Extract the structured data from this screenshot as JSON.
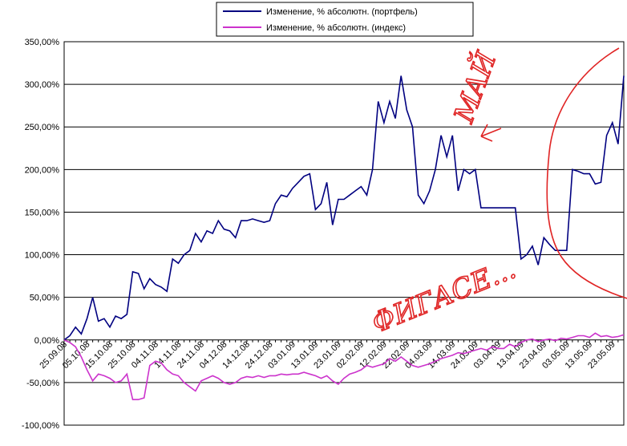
{
  "chart_data": {
    "type": "line",
    "categories": [
      "25.09.08",
      null,
      null,
      null,
      "05.10.08",
      null,
      null,
      null,
      "15.10.08",
      null,
      null,
      null,
      "25.10.08",
      null,
      null,
      null,
      "04.11.08",
      null,
      null,
      null,
      "14.11.08",
      null,
      null,
      null,
      "24.11.08",
      null,
      null,
      null,
      "04.12.08",
      null,
      null,
      null,
      "14.12.08",
      null,
      null,
      null,
      "24.12.08",
      null,
      null,
      null,
      "03.01.09",
      null,
      null,
      null,
      "13.01.09",
      null,
      null,
      null,
      "23.01.09",
      null,
      null,
      null,
      "02.02.09",
      null,
      null,
      null,
      "12.02.09",
      null,
      null,
      null,
      "22.02.09",
      null,
      null,
      null,
      "04.03.09",
      null,
      null,
      null,
      "14.03.09",
      null,
      null,
      null,
      "24.03.09",
      null,
      null,
      null,
      "03.04.09",
      null,
      null,
      null,
      "13.04.09",
      null,
      null,
      null,
      "23.04.09",
      null,
      null,
      null,
      "03.05.09",
      null,
      null,
      null,
      "13.05.09",
      null,
      null,
      null,
      "23.05.09",
      null,
      null
    ],
    "series": [
      {
        "name": "Изменение, % абсолютн. (портфель)",
        "color": "#000080",
        "values": [
          0,
          5,
          15,
          7,
          25,
          50,
          22,
          25,
          15,
          28,
          25,
          30,
          80,
          78,
          60,
          72,
          65,
          62,
          57,
          95,
          90,
          100,
          105,
          125,
          115,
          128,
          125,
          140,
          130,
          128,
          120,
          140,
          140,
          142,
          140,
          138,
          140,
          160,
          170,
          168,
          178,
          185,
          192,
          195,
          153,
          160,
          185,
          135,
          165,
          165,
          170,
          175,
          180,
          170,
          200,
          280,
          255,
          280,
          260,
          310,
          270,
          250,
          170,
          160,
          175,
          200,
          240,
          215,
          240,
          175,
          200,
          195,
          200,
          155,
          155,
          155,
          155,
          155,
          155,
          155,
          95,
          100,
          110,
          88,
          120,
          112,
          105,
          105,
          105,
          200,
          198,
          195,
          195,
          183,
          185,
          240,
          255,
          230,
          310
        ]
      },
      {
        "name": "Изменение, % абсолютн. (индекс)",
        "color": "#cc33cc",
        "values": [
          0,
          -3,
          -8,
          -20,
          -35,
          -48,
          -40,
          -42,
          -45,
          -50,
          -48,
          -40,
          -70,
          -70,
          -68,
          -30,
          -25,
          -27,
          -35,
          -40,
          -42,
          -50,
          -55,
          -60,
          -48,
          -45,
          -42,
          -45,
          -50,
          -52,
          -50,
          -45,
          -43,
          -44,
          -42,
          -44,
          -42,
          -42,
          -40,
          -41,
          -40,
          -40,
          -38,
          -40,
          -42,
          -45,
          -42,
          -48,
          -52,
          -45,
          -40,
          -38,
          -35,
          -30,
          -32,
          -30,
          -28,
          -22,
          -25,
          -20,
          -25,
          -30,
          -32,
          -30,
          -28,
          -25,
          -22,
          -20,
          -18,
          -15,
          -16,
          -14,
          -12,
          -10,
          -12,
          -8,
          -10,
          -10,
          -5,
          -8,
          -3,
          0,
          1,
          -2,
          0,
          1,
          -1,
          2,
          1,
          3,
          5,
          5,
          3,
          8,
          4,
          5,
          3,
          4,
          6
        ]
      }
    ],
    "ylim": [
      -100,
      350
    ],
    "yticks": [
      {
        "value": -100,
        "label": "-100,00%"
      },
      {
        "value": -50,
        "label": "-50,00%"
      },
      {
        "value": 0,
        "label": "0,00%"
      },
      {
        "value": 50,
        "label": "50,00%"
      },
      {
        "value": 100,
        "label": "100,00%"
      },
      {
        "value": 150,
        "label": "150,00%"
      },
      {
        "value": 200,
        "label": "200,00%"
      },
      {
        "value": 250,
        "label": "250,00%"
      },
      {
        "value": 300,
        "label": "300,00%"
      },
      {
        "value": 350,
        "label": "350,00%"
      }
    ],
    "grid": true,
    "legend": "top",
    "annotations": [
      "МАЙ",
      "ФИГАСЕ..."
    ]
  }
}
